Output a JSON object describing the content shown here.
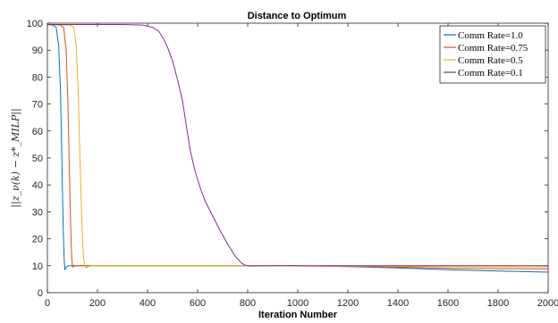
{
  "chart_data": {
    "type": "line",
    "title": "Distance to Optimum",
    "xlabel": "Iteration Number",
    "ylabel": "||z_ν(k) − z*_MILP||",
    "xlim": [
      0,
      2000
    ],
    "ylim": [
      0,
      100
    ],
    "xticks": [
      "0",
      "200",
      "400",
      "600",
      "800",
      "1000",
      "1200",
      "1400",
      "1600",
      "1800",
      "2000"
    ],
    "yticks": [
      "0",
      "10",
      "20",
      "30",
      "40",
      "50",
      "60",
      "70",
      "80",
      "90",
      "100"
    ],
    "grid": false,
    "legend_position": "top-right",
    "series": [
      {
        "name": "Comm Rate=1.0",
        "color": "#0072BD",
        "points": [
          [
            0,
            99.5
          ],
          [
            20,
            99.3
          ],
          [
            35,
            98.5
          ],
          [
            45,
            92
          ],
          [
            52,
            75
          ],
          [
            58,
            50
          ],
          [
            63,
            25
          ],
          [
            67,
            12
          ],
          [
            70,
            8.5
          ],
          [
            75,
            9.5
          ],
          [
            85,
            10
          ],
          [
            100,
            10
          ],
          [
            400,
            10
          ],
          [
            800,
            10
          ],
          [
            1000,
            10
          ],
          [
            1200,
            9.7
          ],
          [
            1400,
            9.2
          ],
          [
            1600,
            8.5
          ],
          [
            1800,
            8
          ],
          [
            2000,
            7.6
          ]
        ]
      },
      {
        "name": "Comm Rate=0.75",
        "color": "#D95319",
        "points": [
          [
            0,
            99.5
          ],
          [
            50,
            99.3
          ],
          [
            65,
            98.5
          ],
          [
            75,
            90
          ],
          [
            82,
            70
          ],
          [
            88,
            45
          ],
          [
            93,
            25
          ],
          [
            97,
            13
          ],
          [
            100,
            9.5
          ],
          [
            105,
            9.8
          ],
          [
            120,
            10
          ],
          [
            400,
            10
          ],
          [
            800,
            10
          ],
          [
            1200,
            9.8
          ],
          [
            1600,
            9.1
          ],
          [
            1800,
            8.9
          ],
          [
            2000,
            8.8
          ]
        ]
      },
      {
        "name": "Comm Rate=0.5",
        "color": "#EDB120",
        "points": [
          [
            0,
            99.5
          ],
          [
            90,
            99.3
          ],
          [
            105,
            98.5
          ],
          [
            115,
            92
          ],
          [
            123,
            75
          ],
          [
            130,
            50
          ],
          [
            137,
            28
          ],
          [
            143,
            15
          ],
          [
            148,
            10
          ],
          [
            155,
            9.2
          ],
          [
            165,
            9.8
          ],
          [
            180,
            10
          ],
          [
            400,
            10
          ],
          [
            800,
            10
          ],
          [
            1200,
            9.9
          ],
          [
            1600,
            9.7
          ],
          [
            2000,
            9.5
          ]
        ]
      },
      {
        "name": "Comm Rate=0.1",
        "color": "#7E2F8E",
        "points": [
          [
            0,
            99.5
          ],
          [
            300,
            99.5
          ],
          [
            380,
            99.3
          ],
          [
            420,
            98.5
          ],
          [
            445,
            97
          ],
          [
            465,
            94
          ],
          [
            480,
            91
          ],
          [
            500,
            86
          ],
          [
            520,
            79
          ],
          [
            540,
            71
          ],
          [
            555,
            62
          ],
          [
            570,
            53
          ],
          [
            590,
            45
          ],
          [
            610,
            39
          ],
          [
            630,
            34
          ],
          [
            660,
            28.5
          ],
          [
            690,
            23
          ],
          [
            720,
            18
          ],
          [
            750,
            13.5
          ],
          [
            775,
            11
          ],
          [
            790,
            10.2
          ],
          [
            810,
            9.9
          ],
          [
            900,
            10
          ],
          [
            1000,
            10
          ],
          [
            1200,
            10
          ],
          [
            1400,
            10
          ],
          [
            1600,
            10
          ],
          [
            1800,
            10
          ],
          [
            2000,
            10
          ]
        ]
      }
    ]
  }
}
